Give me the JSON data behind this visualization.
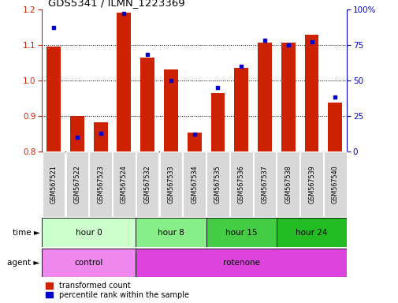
{
  "title": "GDS5341 / ILMN_1223369",
  "samples": [
    "GSM567521",
    "GSM567522",
    "GSM567523",
    "GSM567524",
    "GSM567532",
    "GSM567533",
    "GSM567534",
    "GSM567535",
    "GSM567536",
    "GSM567537",
    "GSM567538",
    "GSM567539",
    "GSM567540"
  ],
  "red_values": [
    1.095,
    0.9,
    0.882,
    1.19,
    1.063,
    1.03,
    0.854,
    0.964,
    1.035,
    1.105,
    1.105,
    1.127,
    0.937
  ],
  "blue_values": [
    87,
    10,
    13,
    97,
    68,
    50,
    12,
    45,
    60,
    78,
    75,
    77,
    38
  ],
  "ylim_left": [
    0.8,
    1.2
  ],
  "ylim_right": [
    0,
    100
  ],
  "yticks_left": [
    0.8,
    0.9,
    1.0,
    1.1,
    1.2
  ],
  "yticks_right": [
    0,
    25,
    50,
    75,
    100
  ],
  "yticklabels_right": [
    "0",
    "25",
    "50",
    "75",
    "100%"
  ],
  "bar_color": "#cc2200",
  "dot_color": "#0000cc",
  "baseline": 0.8,
  "time_groups": [
    {
      "label": "hour 0",
      "start": 0,
      "end": 4,
      "color": "#ccffcc"
    },
    {
      "label": "hour 8",
      "start": 4,
      "end": 7,
      "color": "#88ee88"
    },
    {
      "label": "hour 15",
      "start": 7,
      "end": 10,
      "color": "#44cc44"
    },
    {
      "label": "hour 24",
      "start": 10,
      "end": 13,
      "color": "#22bb22"
    }
  ],
  "agent_groups": [
    {
      "label": "control",
      "start": 0,
      "end": 4,
      "color": "#ee88ee"
    },
    {
      "label": "rotenone",
      "start": 4,
      "end": 13,
      "color": "#dd44dd"
    }
  ],
  "time_label": "time",
  "agent_label": "agent",
  "legend_red": "transformed count",
  "legend_blue": "percentile rank within the sample",
  "tick_color_left": "#cc2200",
  "tick_color_right": "#0000cc"
}
